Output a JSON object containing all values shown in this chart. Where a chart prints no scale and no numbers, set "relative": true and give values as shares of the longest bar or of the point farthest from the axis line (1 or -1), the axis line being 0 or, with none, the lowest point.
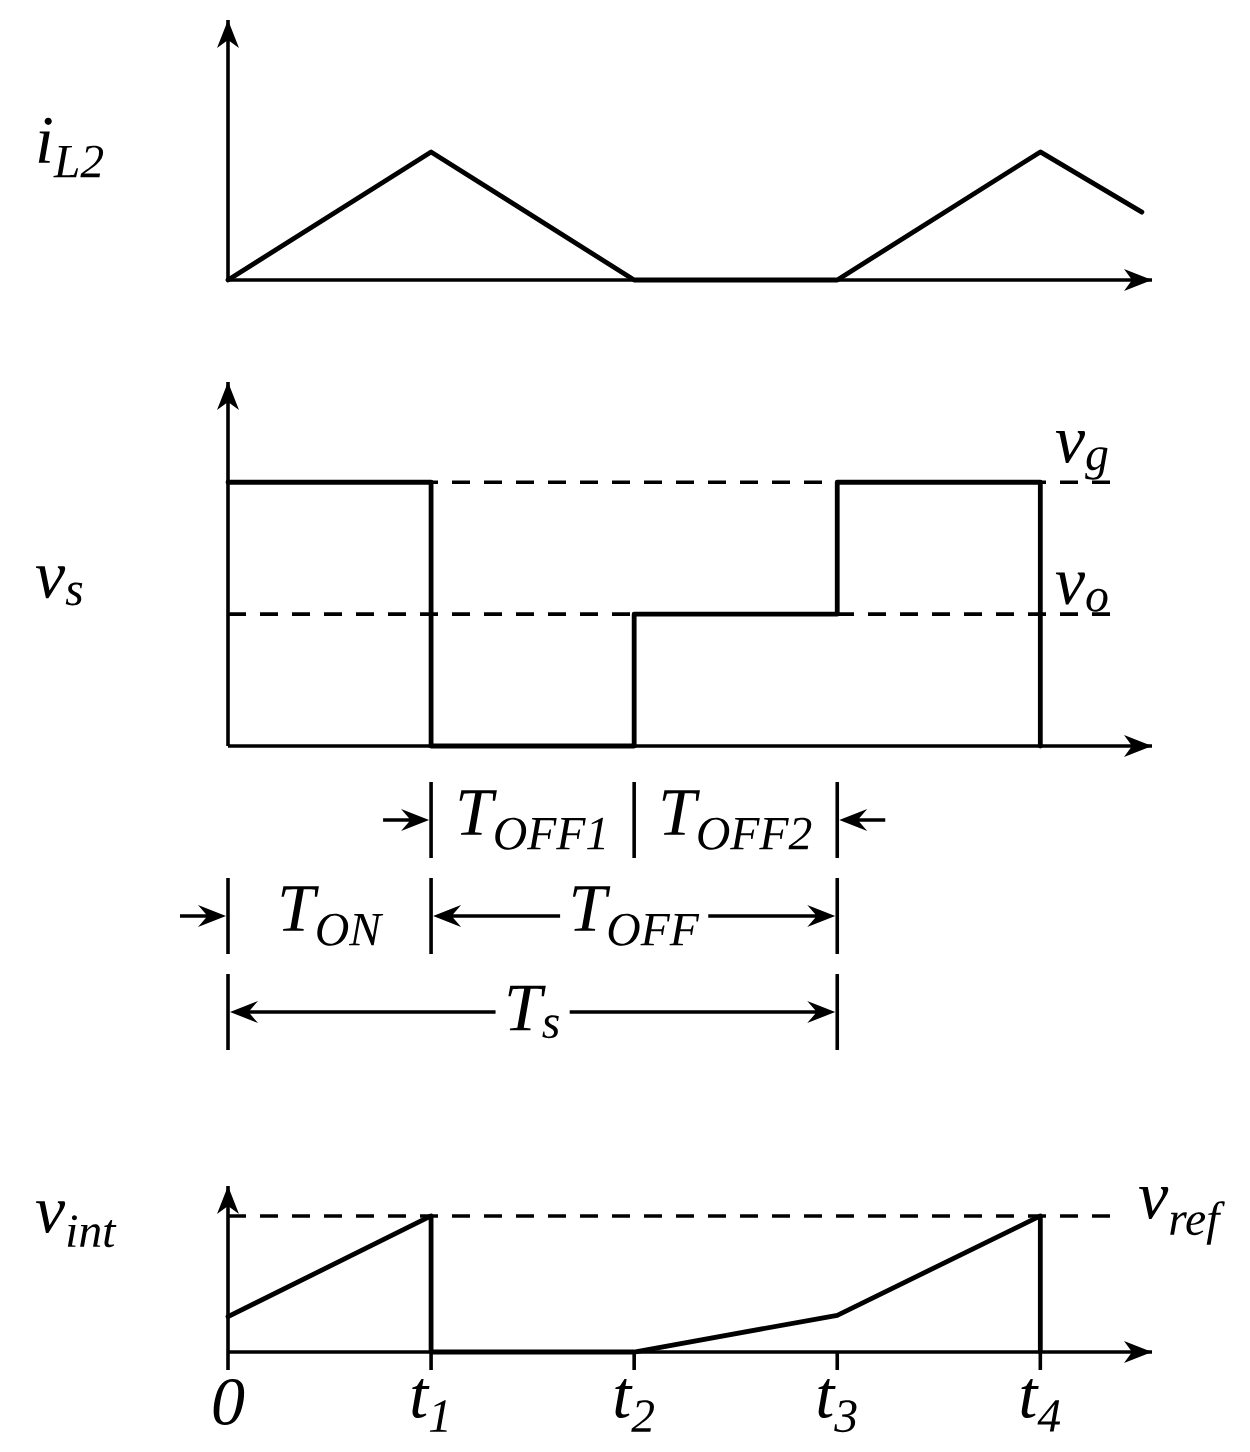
{
  "chart_data": [
    {
      "type": "line",
      "relative": true,
      "ylabel": "i$_{L2}$",
      "x": [
        0,
        1,
        2,
        3,
        4,
        4.5
      ],
      "values": [
        0,
        1,
        0,
        0,
        1,
        0.53
      ],
      "color": "#000000",
      "xlim": [
        0,
        4.55
      ],
      "tick_labels": false
    },
    {
      "type": "step",
      "relative": true,
      "ylabel": "v$_{s}$",
      "x": [
        0,
        1,
        2,
        3,
        4
      ],
      "values": [
        1,
        0,
        0.5,
        1,
        0
      ],
      "color": "#000000",
      "xlim": [
        0,
        4.55
      ],
      "tick_labels": false,
      "ref_lines": [
        {
          "axis": "y",
          "value": 1,
          "label": "v$_{g}$",
          "line_style": "dashed"
        },
        {
          "axis": "y",
          "value": 0.5,
          "label": "v$_{o}$",
          "line_style": "dashed"
        }
      ]
    },
    {
      "type": "line",
      "relative": true,
      "ylabel": "v$_{int}$",
      "x": [
        0,
        1,
        1,
        2,
        3,
        4,
        4
      ],
      "values": [
        0.26,
        1,
        0,
        0,
        0.27,
        1,
        0
      ],
      "color": "#000000",
      "xlim": [
        0,
        4.55
      ],
      "xticks": [
        0,
        {
          "value": 1,
          "label": "t$_{1}$"
        },
        {
          "value": 2,
          "label": "t$_{2}$"
        },
        {
          "value": 3,
          "label": "t$_{3}$"
        },
        {
          "value": 4,
          "label": "t$_{4}$"
        }
      ],
      "tick_labels": "x",
      "ref_lines": [
        {
          "axis": "y",
          "value": 1,
          "label": "v$_{ref}$",
          "line_style": "dashed"
        }
      ],
      "annotations": [
        "T$_{OFF1}$",
        "T$_{OFF2}$",
        "T$_{ON}$",
        "T$_{OFF}$",
        "T$_{s}$"
      ]
    }
  ]
}
